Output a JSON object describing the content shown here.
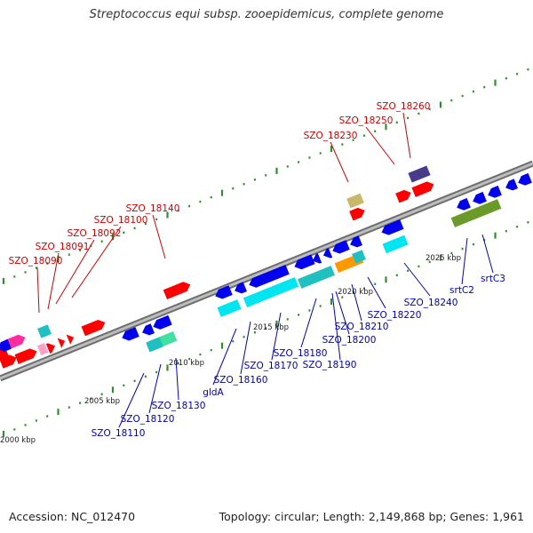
{
  "title": "Streptococcus equi subsp. zooepidemicus, complete genome",
  "footer": {
    "accession": "Accession: NC_012470",
    "summary": "Topology: circular; Length: 2,149,868 bp; Genes: 1,961"
  },
  "colors": {
    "backbone": "#8c8c8c",
    "tick": "#2f8f2f",
    "upper_labels": "#cc0000",
    "lower_labels": "#0000aa",
    "kbp_labels": "#222222",
    "red": "#ff0000",
    "blue": "#0000ee",
    "cyan": "#00e6f0",
    "teal": "#20c0c0",
    "orange": "#ff9900",
    "magenta": "#ff2ca0",
    "pink": "#ff9ec6",
    "lavender": "#4a3a8c",
    "khaki": "#c8b86a",
    "olive": "#6a9a2a",
    "mint": "#40e0a0"
  },
  "scale_labels": [
    "2000 kbp",
    "2005 kbp",
    "2010 kbp",
    "2015 kbp",
    "2020 kbp",
    "2025 kbp"
  ],
  "upper_genes": [
    "SZO_18090",
    "SZO_18091",
    "SZO_18092",
    "SZO_18100",
    "SZO_18140",
    "SZO_18230",
    "SZO_18250",
    "SZO_18260"
  ],
  "lower_genes": [
    "SZO_18110",
    "SZO_18120",
    "SZO_18130",
    "gldA",
    "SZO_18160",
    "SZO_18170",
    "SZO_18180",
    "SZO_18190",
    "SZO_18200",
    "SZO_18210",
    "SZO_18220",
    "SZO_18240",
    "srtC2",
    "srtC3"
  ]
}
